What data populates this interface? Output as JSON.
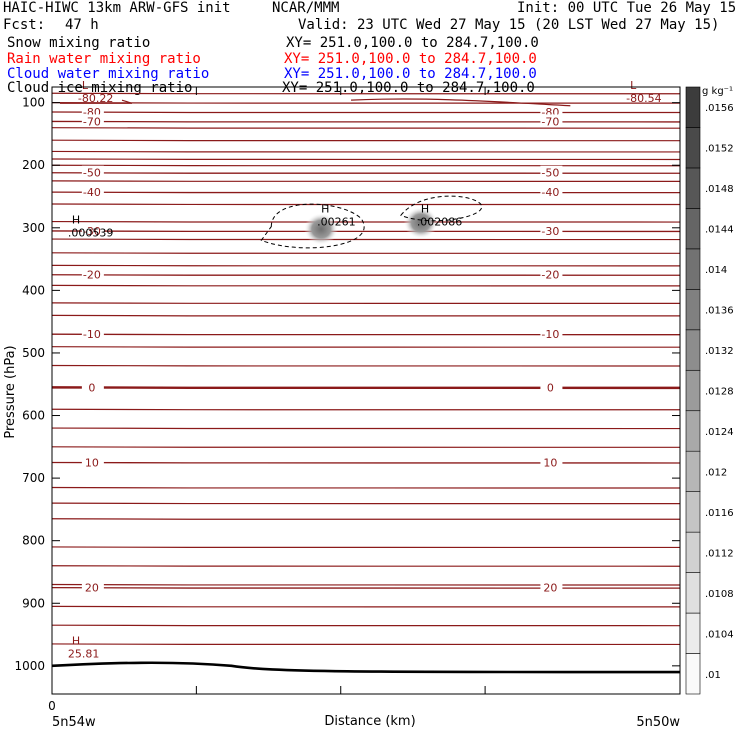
{
  "header": {
    "title": "HAIC-HIWC 13km ARW-GFS init",
    "org": "NCAR/MMM",
    "init": "Init: 00 UTC Tue 26 May 15",
    "fcst_label": "Fcst:",
    "fcst_value": "47 h",
    "valid": "Valid: 23 UTC Wed 27 May 15 (20 LST Wed 27 May 15)",
    "fields": [
      {
        "name": "Snow mixing ratio",
        "xy": "XY= 251.0,100.0 to 284.7,100.0",
        "color": "#000000"
      },
      {
        "name": "Rain water mixing ratio",
        "xy": "XY= 251.0,100.0 to 284.7,100.0",
        "color": "#ff0000"
      },
      {
        "name": "Cloud water mixing ratio",
        "xy": "XY= 251.0,100.0 to 284.7,100.0",
        "color": "#0000ff"
      },
      {
        "name": "Cloud ice mixing ratio",
        "xy": "XY= 251.0,100.0 to 284.7,100.0",
        "color": "#000000"
      }
    ]
  },
  "chart_data": {
    "type": "contour",
    "ylabel": "Pressure (hPa)",
    "xlabel": "Distance (km)",
    "y_ticks": [
      100,
      200,
      300,
      400,
      500,
      600,
      700,
      800,
      900,
      1000
    ],
    "x_zero_label": "0",
    "x_left_label": "5n54w",
    "x_right_label": "5n50w",
    "temperature_contours": [
      {
        "label": "-80",
        "p": 115
      },
      {
        "label": "-70",
        "p": 130
      },
      {
        "label": "-50",
        "p": 212
      },
      {
        "label": "-40",
        "p": 243
      },
      {
        "label": "-30",
        "p": 305
      },
      {
        "label": "-20",
        "p": 375
      },
      {
        "label": "-10",
        "p": 470
      },
      {
        "label": "0",
        "p": 555
      },
      {
        "label": "10",
        "p": 675
      },
      {
        "label": "20",
        "p": 875
      }
    ],
    "extrema": [
      {
        "kind": "L",
        "value": "-80.22",
        "x_km": 3,
        "p": 97
      },
      {
        "kind": "L",
        "value": "-80.54",
        "x_km": 58,
        "p": 97
      },
      {
        "kind": "H",
        "value": ".000539",
        "x_km": 2,
        "p": 312
      },
      {
        "kind": "H",
        "value": ".00261",
        "x_km": 27,
        "p": 295
      },
      {
        "kind": "H",
        "value": ".002086",
        "x_km": 37,
        "p": 295
      },
      {
        "kind": "H",
        "value": "25.81",
        "x_km": 2,
        "p": 985
      }
    ],
    "colorbar": {
      "unit": "g kg⁻¹",
      "levels": [
        ".01",
        ".0104",
        ".0108",
        ".0112",
        ".0116",
        ".012",
        ".0124",
        ".0128",
        ".0132",
        ".0136",
        ".014",
        ".0144",
        ".0148",
        ".0152",
        ".0156"
      ]
    }
  }
}
